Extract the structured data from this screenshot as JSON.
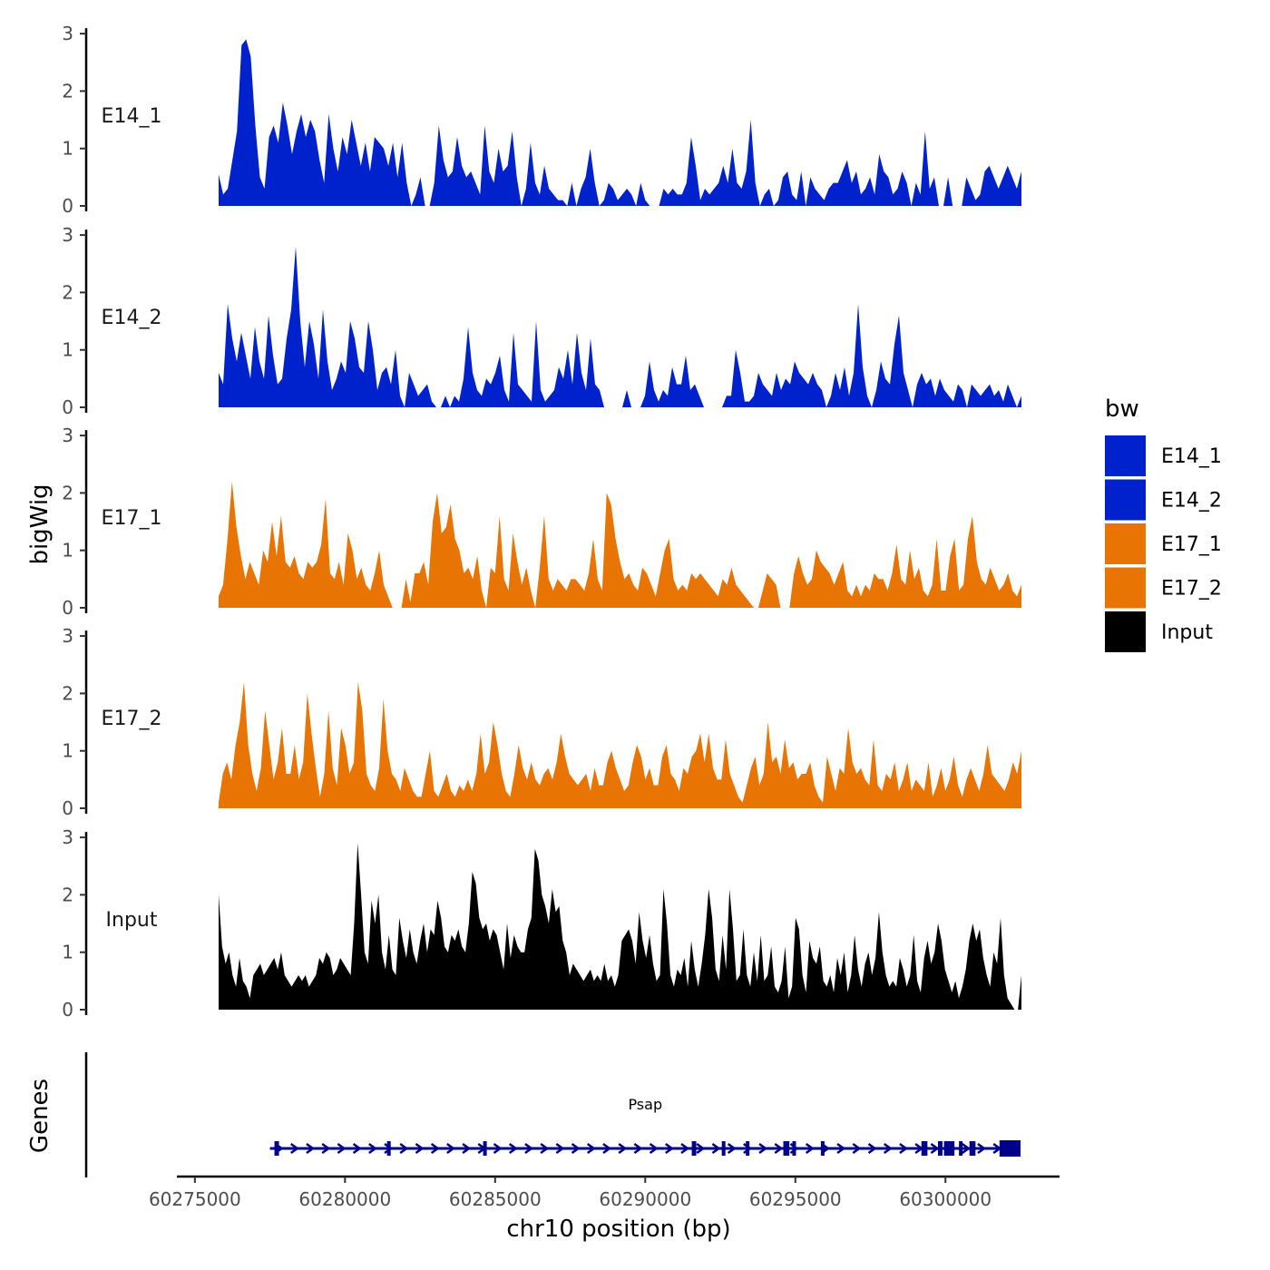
{
  "chart_data": {
    "type": "area",
    "ylabel": "bigWig",
    "xlabel": "chr10 position (bp)",
    "ylim": [
      0,
      3
    ],
    "y_ticks": [
      "0",
      "1",
      "2",
      "3"
    ],
    "x_ticks": [
      60275000,
      60280000,
      60285000,
      60290000,
      60295000,
      60300000
    ],
    "x_tick_labels": [
      "60275000",
      "60280000",
      "60285000",
      "60290000",
      "60295000",
      "60300000"
    ],
    "xlim": [
      60275400,
      60302500
    ],
    "x_axis_range": [
      60274400,
      60303800
    ],
    "legend": {
      "title": "bw",
      "position": "right",
      "entries": [
        {
          "label": "E14_1",
          "color": "#0022CC"
        },
        {
          "label": "E14_2",
          "color": "#0022CC"
        },
        {
          "label": "E17_1",
          "color": "#E87404"
        },
        {
          "label": "E17_2",
          "color": "#E87404"
        },
        {
          "label": "Input",
          "color": "#000000"
        }
      ]
    },
    "series": [
      {
        "name": "E14_1",
        "color": "#0022CC",
        "values": [
          0.55,
          0.2,
          0.3,
          0.8,
          1.3,
          2.8,
          2.9,
          2.6,
          1.4,
          0.5,
          0.3,
          1.2,
          1.4,
          1.1,
          1.8,
          1.4,
          0.9,
          1.3,
          1.6,
          1.2,
          1.5,
          1.3,
          0.8,
          0.4,
          1.6,
          1.0,
          0.6,
          1.2,
          0.9,
          1.5,
          1.1,
          0.7,
          1.1,
          0.6,
          1.2,
          1.1,
          1.0,
          0.7,
          1.1,
          0.5,
          1.1,
          0.4,
          0,
          0.2,
          0.5,
          0,
          0,
          0.4,
          1.4,
          0.8,
          0.5,
          0.6,
          1.2,
          0.7,
          0.5,
          0.6,
          0.4,
          0.2,
          1.4,
          0.6,
          0.4,
          1.0,
          0.6,
          0.7,
          1.3,
          0.5,
          0,
          0.3,
          1.1,
          0.4,
          0.2,
          0.7,
          0.3,
          0.2,
          0.1,
          0.1,
          0,
          0.4,
          0,
          0.3,
          0.5,
          1.0,
          0.4,
          0,
          0.1,
          0.4,
          0.3,
          0.1,
          0.2,
          0.3,
          0.2,
          0,
          0.4,
          0.1,
          0,
          0,
          0,
          0.3,
          0.2,
          0.3,
          0.2,
          0.2,
          0.4,
          1.2,
          0.7,
          0.1,
          0.3,
          0.2,
          0.3,
          0.4,
          0.7,
          0.4,
          1.0,
          0.4,
          0.3,
          0.6,
          1.5,
          0.4,
          0,
          0.2,
          0.3,
          0,
          0.1,
          0.5,
          0.6,
          0.2,
          0.1,
          0.6,
          0,
          0.5,
          0.3,
          0.2,
          0.1,
          0.3,
          0.4,
          0.4,
          0.6,
          0.8,
          0.4,
          0.6,
          0.2,
          0.3,
          0.5,
          0.2,
          0.9,
          0.6,
          0.5,
          0.2,
          0.3,
          0.6,
          0.4,
          0,
          0.4,
          0.2,
          1.3,
          0.3,
          0.5,
          0,
          0,
          0.5,
          0,
          0,
          0,
          0.5,
          0.3,
          0.1,
          0.2,
          0.6,
          0.7,
          0.5,
          0.3,
          0.5,
          0.7,
          0.5,
          0.3,
          0.6
        ]
      },
      {
        "name": "E14_2",
        "color": "#0022CC",
        "values": [
          0.6,
          0.4,
          1.8,
          1.2,
          0.8,
          1.3,
          0.9,
          0.5,
          1.4,
          0.8,
          0.5,
          1.6,
          0.9,
          0.4,
          0.5,
          1.2,
          1.7,
          2.8,
          1.5,
          0.7,
          1.5,
          1.1,
          0.5,
          1.7,
          0.8,
          0.3,
          0.5,
          0.8,
          0.6,
          1.5,
          1.2,
          0.7,
          0.6,
          1.5,
          1.0,
          0.3,
          0.6,
          0.7,
          0.4,
          1.0,
          0.2,
          0,
          0.6,
          0.4,
          0.2,
          0.3,
          0.4,
          0.1,
          0,
          0,
          0.2,
          0,
          0.2,
          0.1,
          0.5,
          1.4,
          0.6,
          0.3,
          0.2,
          0.5,
          0.4,
          0.6,
          0.9,
          0.3,
          0.1,
          1.3,
          0.4,
          0.3,
          0.2,
          0.1,
          1.5,
          0.3,
          0.1,
          0.2,
          0.3,
          0.7,
          0.5,
          1.0,
          0.4,
          1.3,
          0.6,
          0.3,
          1.2,
          0.4,
          0.3,
          0,
          0,
          0,
          0,
          0,
          0.3,
          0,
          0,
          0,
          0.2,
          0.8,
          0.3,
          0.1,
          0.3,
          0.2,
          0.7,
          0.4,
          0.4,
          0.9,
          0.3,
          0.4,
          0.2,
          0,
          0,
          0,
          0,
          0,
          0.2,
          0.2,
          1.0,
          0.6,
          0.1,
          0.1,
          0.2,
          0.6,
          0.4,
          0.3,
          0.2,
          0.6,
          0.3,
          0.5,
          0.4,
          0.8,
          0.6,
          0.5,
          0.4,
          0.6,
          0.4,
          0.3,
          0,
          0.2,
          0.6,
          0.3,
          0.7,
          0.2,
          0.6,
          1.8,
          0.7,
          0.2,
          0,
          0.3,
          0.8,
          0.5,
          0.4,
          1.1,
          1.6,
          0.6,
          0.3,
          0,
          0.4,
          0.6,
          0.4,
          0.5,
          0.2,
          0.5,
          0.3,
          0.2,
          0.1,
          0.4,
          0.3,
          0,
          0.4,
          0.3,
          0.2,
          0.3,
          0.4,
          0.2,
          0.3,
          0.1,
          0.4,
          0.2,
          0,
          0.2
        ]
      },
      {
        "name": "E17_1",
        "color": "#E87404",
        "values": [
          0.2,
          0.4,
          1.2,
          2.2,
          1.4,
          0.9,
          0.5,
          0.8,
          0.6,
          0.4,
          1.0,
          0.8,
          1.5,
          0.9,
          1.6,
          0.8,
          0.7,
          0.9,
          0.6,
          0.5,
          0.8,
          0.7,
          0.8,
          1.1,
          1.9,
          0.6,
          0.5,
          0.8,
          0.4,
          1.3,
          1.0,
          0.5,
          0.7,
          0.4,
          0.3,
          0.6,
          1.0,
          0.4,
          0.2,
          0,
          0,
          0,
          0.5,
          0.1,
          0.6,
          0.6,
          0.8,
          0.4,
          1.5,
          2.0,
          1.3,
          1.4,
          1.8,
          1.2,
          1.0,
          0.6,
          0.7,
          0.5,
          0.9,
          0.3,
          0,
          0.7,
          0.6,
          1.6,
          0.5,
          0.3,
          1.3,
          0.8,
          0.4,
          0.7,
          0.3,
          0,
          0.7,
          1.6,
          0.5,
          0.3,
          0.5,
          0.4,
          0.3,
          0.5,
          0.5,
          0.4,
          0.3,
          0.6,
          1.2,
          0.5,
          0.3,
          2.0,
          1.8,
          1.2,
          0.8,
          0.5,
          0.6,
          0.4,
          0.3,
          0.7,
          0.6,
          0.4,
          0.2,
          0.6,
          1.0,
          1.2,
          0.5,
          0.3,
          0.4,
          0.3,
          0.6,
          0.5,
          0.6,
          0.5,
          0.4,
          0.3,
          0.2,
          0.5,
          0.4,
          0.7,
          0.4,
          0.3,
          0.2,
          0.1,
          0,
          0,
          0.3,
          0.6,
          0.5,
          0.4,
          0,
          0,
          0,
          0.6,
          0.9,
          0.6,
          0.4,
          0.5,
          1.0,
          0.8,
          0.7,
          0.6,
          0.4,
          0.6,
          0.8,
          0.3,
          0.2,
          0.4,
          0.2,
          0.4,
          0.3,
          0.6,
          0.5,
          0.5,
          0.3,
          0.6,
          1.1,
          0.5,
          0.4,
          1.0,
          0.5,
          0.7,
          0.3,
          0.2,
          0.4,
          1.2,
          0.3,
          0.3,
          0.9,
          1.2,
          0.3,
          0.4,
          1.2,
          1.6,
          0.8,
          0.5,
          0.4,
          0.7,
          0.5,
          0.3,
          0.4,
          0.6,
          0.3,
          0.2,
          0.4
        ]
      },
      {
        "name": "E17_2",
        "color": "#E87404",
        "values": [
          0.1,
          0.6,
          0.8,
          0.5,
          1.1,
          1.5,
          2.2,
          1.1,
          0.6,
          0.3,
          0.7,
          1.7,
          1.1,
          0.5,
          0.8,
          1.4,
          0.6,
          0.6,
          1.1,
          0.5,
          0.8,
          2.0,
          1.3,
          0.7,
          0.2,
          0.6,
          1.7,
          0.7,
          0.4,
          1.4,
          1.1,
          0.6,
          0.8,
          2.2,
          1.7,
          0.6,
          0.4,
          0.3,
          0.7,
          1.9,
          1.0,
          0.6,
          0.5,
          0.3,
          0.7,
          0.5,
          0.3,
          0.2,
          0.2,
          0.6,
          1.0,
          0.3,
          0.2,
          0.4,
          0.6,
          0.3,
          0.2,
          0.4,
          0.3,
          0.5,
          0.3,
          0.6,
          1.3,
          0.6,
          0.8,
          1.5,
          1.1,
          0.6,
          0.3,
          0.2,
          0.6,
          1.1,
          0.7,
          0.5,
          0.8,
          0.5,
          0.4,
          0.6,
          0.7,
          0.5,
          0.8,
          1.3,
          0.9,
          0.6,
          0.5,
          0.4,
          0.5,
          0.6,
          0.3,
          0.7,
          0.4,
          0.4,
          0.8,
          1.0,
          0.7,
          0.5,
          0.3,
          0.4,
          0.8,
          1.1,
          0.9,
          0.5,
          0.7,
          0.4,
          0.4,
          0.9,
          1.1,
          0.6,
          0.5,
          0.3,
          0.7,
          0.6,
          0.9,
          1.0,
          1.3,
          0.8,
          1.3,
          0.7,
          0.5,
          0.5,
          1.2,
          0.6,
          0.4,
          0.2,
          0.1,
          0.4,
          0.7,
          0.9,
          0.4,
          0.6,
          1.5,
          0.8,
          0.9,
          0.6,
          1.2,
          0.7,
          0.8,
          0.5,
          0.6,
          0.6,
          0.8,
          0.4,
          0.2,
          0.1,
          0.9,
          0.6,
          0.3,
          0.7,
          0.6,
          1.4,
          0.8,
          0.6,
          0.7,
          0.5,
          0.4,
          1.2,
          0.4,
          0.3,
          0.6,
          0.5,
          0.8,
          0.3,
          0.5,
          0.8,
          0.3,
          0.5,
          0.4,
          0.3,
          0.8,
          0.2,
          0.4,
          0.7,
          0.3,
          0.5,
          0.9,
          0.4,
          0.2,
          0.5,
          0.7,
          0.5,
          0.3,
          0.6,
          1.1,
          0.6,
          0.5,
          0.4,
          0.3,
          0.5,
          0.8,
          0.6,
          1.0
        ]
      },
      {
        "name": "Input",
        "color": "#000000",
        "values": [
          2.0,
          1.1,
          0.8,
          1.0,
          0.6,
          0.4,
          0.9,
          0.5,
          0.4,
          0.2,
          0.6,
          0.7,
          0.8,
          0.6,
          0.7,
          0.8,
          0.9,
          0.7,
          1.0,
          0.6,
          0.5,
          0.4,
          0.5,
          0.6,
          0.5,
          0.6,
          0.4,
          0.5,
          0.6,
          0.9,
          0.8,
          1.0,
          0.9,
          0.6,
          0.7,
          0.9,
          0.8,
          0.7,
          0.6,
          1.5,
          2.9,
          2.0,
          1.0,
          0.8,
          1.9,
          1.5,
          2.0,
          1.0,
          0.7,
          1.3,
          0.7,
          0.6,
          1.6,
          1.2,
          0.9,
          1.4,
          1.0,
          0.8,
          1.2,
          1.5,
          1.0,
          1.4,
          1.3,
          1.9,
          1.6,
          1.1,
          1.0,
          1.3,
          1.2,
          1.4,
          1.1,
          1.0,
          1.5,
          2.4,
          2.2,
          1.6,
          1.4,
          1.5,
          1.2,
          1.4,
          1.3,
          1.0,
          0.7,
          1.5,
          0.9,
          1.3,
          1.1,
          1.0,
          1.0,
          1.4,
          1.6,
          2.8,
          2.6,
          2.0,
          1.8,
          1.5,
          2.1,
          1.7,
          1.8,
          1.2,
          1.0,
          0.6,
          0.8,
          0.7,
          0.6,
          0.5,
          0.6,
          0.7,
          0.5,
          0.6,
          0.5,
          0.8,
          0.5,
          0.6,
          0.4,
          0.6,
          1.2,
          1.3,
          1.4,
          1.2,
          0.8,
          1.7,
          1.2,
          0.9,
          1.3,
          0.8,
          0.5,
          0.6,
          2.1,
          1.5,
          0.6,
          0.4,
          0.7,
          0.6,
          0.9,
          0.4,
          1.2,
          0.7,
          0.4,
          0.8,
          1.3,
          2.1,
          1.6,
          0.7,
          0.5,
          1.3,
          0.7,
          2.1,
          1.4,
          0.5,
          0.6,
          1.4,
          0.6,
          0.4,
          1.0,
          0.5,
          1.3,
          0.5,
          0.6,
          1.1,
          0.4,
          0.3,
          0.5,
          1.1,
          0.2,
          0.4,
          1.6,
          1.4,
          0.6,
          0.3,
          1.2,
          0.9,
          0.8,
          1.1,
          0.5,
          0.4,
          0.6,
          0.3,
          0.9,
          0.6,
          1.0,
          0.3,
          0.6,
          1.3,
          0.7,
          0.4,
          0.8,
          1.0,
          0.6,
          0.9,
          1.7,
          1.0,
          0.6,
          0.4,
          0.5,
          0.4,
          0.9,
          0.7,
          0.4,
          0.6,
          1.3,
          0.5,
          0.3,
          0.9,
          1.2,
          0.8,
          1.0,
          1.5,
          1.2,
          0.7,
          0.5,
          0.3,
          0.5,
          0.2,
          0.4,
          0.7,
          1.2,
          1.5,
          1.2,
          1.4,
          0.9,
          0.6,
          0.4,
          1.0,
          0.8,
          1.6,
          0.6,
          0.2,
          0.1,
          0,
          0,
          0.6
        ]
      }
    ],
    "genes": {
      "title": "Genes",
      "label": "Psap",
      "color": "#00008B",
      "strand": "+",
      "start": 60277500,
      "end": 60302500,
      "exons": [
        [
          60277650,
          60277800
        ],
        [
          60281400,
          60281480
        ],
        [
          60284600,
          60284680
        ],
        [
          60291550,
          60291700
        ],
        [
          60292550,
          60292650
        ],
        [
          60293350,
          60293450
        ],
        [
          60294600,
          60294800
        ],
        [
          60294900,
          60295000
        ],
        [
          60295850,
          60295950
        ],
        [
          60299200,
          60299400
        ],
        [
          60299750,
          60299900
        ],
        [
          60299950,
          60300300
        ],
        [
          60300450,
          60300550
        ],
        [
          60300800,
          60301000
        ],
        [
          60301800,
          60302500
        ]
      ]
    }
  }
}
